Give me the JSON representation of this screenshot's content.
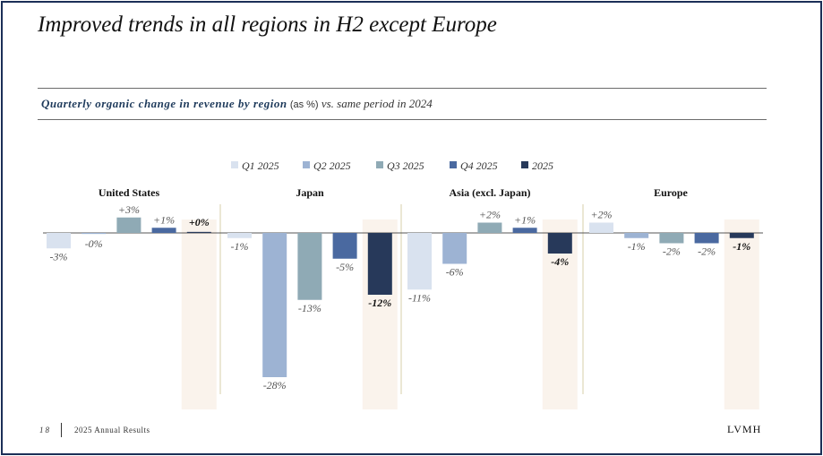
{
  "slide": {
    "title": "Improved trends in all regions in H2 except Europe",
    "subtitle_bold": "Quarterly organic change in revenue by region",
    "subtitle_unit": "(as %)",
    "subtitle_rest": "vs. same period in 2024",
    "page_number": "18",
    "footer_label": "2025 Annual Results",
    "logo": "LVMH"
  },
  "colors": {
    "Q1 2025": "#d9e2ef",
    "Q2 2025": "#9db3d3",
    "Q3 2025": "#8faab5",
    "Q4 2025": "#4a69a0",
    "2025": "#27395a",
    "highlight": "#faf3ec",
    "divider": "#d7cfa8"
  },
  "chart_data": {
    "type": "bar",
    "title": "Quarterly organic change in revenue by region",
    "series_names": [
      "Q1 2025",
      "Q2 2025",
      "Q3 2025",
      "Q4 2025",
      "2025"
    ],
    "categories": [
      "United States",
      "Japan",
      "Asia (excl. Japan)",
      "Europe"
    ],
    "series": [
      {
        "name": "Q1 2025",
        "values": [
          -3,
          -1,
          -11,
          2
        ]
      },
      {
        "name": "Q2 2025",
        "values": [
          -0.2,
          -28,
          -6,
          -1
        ]
      },
      {
        "name": "Q3 2025",
        "values": [
          3,
          -13,
          2,
          -2
        ]
      },
      {
        "name": "Q4 2025",
        "values": [
          1,
          -5,
          1,
          -2
        ]
      },
      {
        "name": "2025",
        "values": [
          0.2,
          -12,
          -4,
          -1
        ]
      }
    ],
    "labels": [
      [
        "-3%",
        "-0%",
        "+3%",
        "+1%",
        "+0%"
      ],
      [
        "-1%",
        "-28%",
        "-13%",
        "-5%",
        "-12%"
      ],
      [
        "-11%",
        "-6%",
        "+2%",
        "+1%",
        "-4%"
      ],
      [
        "+2%",
        "-1%",
        "-2%",
        "-2%",
        "-1%"
      ]
    ],
    "ylabel": "%",
    "ylim": [
      -35,
      5
    ],
    "legend_position": "top"
  }
}
